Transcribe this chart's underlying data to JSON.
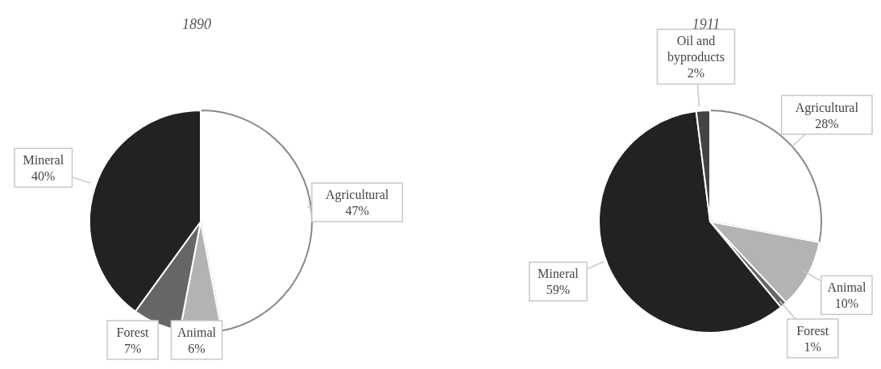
{
  "chart_data": [
    {
      "type": "pie",
      "title": "1890",
      "categories": [
        "Agricultural",
        "Animal",
        "Forest",
        "Mineral"
      ],
      "values": [
        47,
        6,
        7,
        40
      ],
      "value_labels": [
        "47%",
        "6%",
        "7%",
        "40%"
      ],
      "colors": [
        "#ffffff",
        "#b3b3b3",
        "#666666",
        "#222222"
      ]
    },
    {
      "type": "pie",
      "title": "1911",
      "categories": [
        "Agricultural",
        "Animal",
        "Forest",
        "Mineral",
        "Oil and byproducts"
      ],
      "values": [
        28,
        10,
        1,
        59,
        2
      ],
      "value_labels": [
        "28%",
        "10%",
        "1%",
        "59%",
        "2%"
      ],
      "colors": [
        "#ffffff",
        "#b3b3b3",
        "#666666",
        "#222222",
        "#444444"
      ]
    }
  ]
}
